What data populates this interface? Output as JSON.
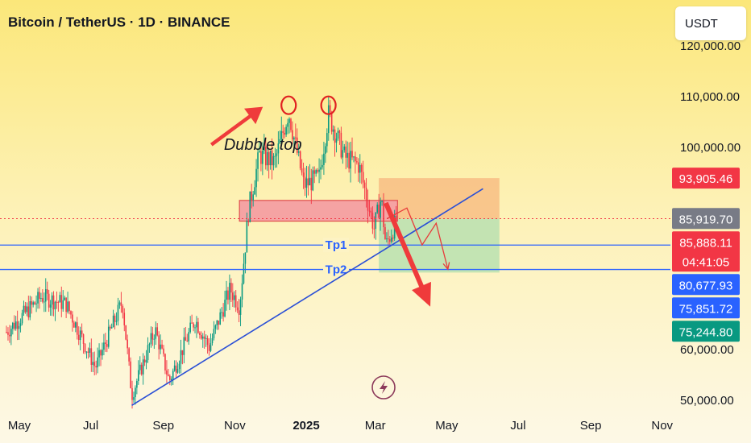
{
  "header": {
    "title": "Bitcoin / TetherUS · 1D · BINANCE"
  },
  "toolbar": {
    "currency_label": "USDT"
  },
  "chart_data": {
    "type": "candlestick",
    "title": "Bitcoin / TetherUS · 1D · BINANCE",
    "y_ticks": [
      {
        "value": 50000,
        "label": "50,000.00"
      },
      {
        "value": 60000,
        "label": "60,000.00"
      },
      {
        "value": 100000,
        "label": "100,000.00"
      },
      {
        "value": 110000,
        "label": "110,000.00"
      },
      {
        "value": 120000,
        "label": "120,000.00"
      }
    ],
    "x_ticks": [
      {
        "date": "2024-05-01",
        "label": "May",
        "bold": false
      },
      {
        "date": "2024-07-01",
        "label": "Jul",
        "bold": false
      },
      {
        "date": "2024-09-01",
        "label": "Sep",
        "bold": false
      },
      {
        "date": "2024-11-01",
        "label": "Nov",
        "bold": false
      },
      {
        "date": "2025-01-01",
        "label": "2025",
        "bold": true
      },
      {
        "date": "2025-03-01",
        "label": "Mar",
        "bold": false
      },
      {
        "date": "2025-05-01",
        "label": "May",
        "bold": false
      },
      {
        "date": "2025-07-01",
        "label": "Jul",
        "bold": false
      },
      {
        "date": "2025-09-01",
        "label": "Sep",
        "bold": false
      },
      {
        "date": "2025-11-01",
        "label": "Nov",
        "bold": false
      }
    ],
    "price_tags": [
      {
        "value": 93905.46,
        "label": "93,905.46",
        "color": "#f23645"
      },
      {
        "value": 85919.7,
        "label": "85,919.70",
        "color": "#787b86"
      },
      {
        "value": 85888.11,
        "label": "85,888.11",
        "sublabel": "04:41:05",
        "color": "#f23645"
      },
      {
        "value": 80677.93,
        "label": "80,677.93",
        "color": "#2962ff"
      },
      {
        "value": 75851.72,
        "label": "75,851.72",
        "color": "#2962ff"
      },
      {
        "value": 75244.8,
        "label": "75,244.80",
        "color": "#089981"
      }
    ],
    "horizontal_lines": [
      {
        "value": 80677.93,
        "label": "Tp1",
        "color": "#2962ff"
      },
      {
        "value": 75851.72,
        "label": "Tp2",
        "color": "#2962ff"
      }
    ],
    "current_price": {
      "value": 85888.11,
      "color": "#f23645"
    },
    "annotations": [
      {
        "text": "Dubble top",
        "date": "2024-11-25",
        "value": 99500
      }
    ],
    "trendline": {
      "from": {
        "date": "2024-08-05",
        "value": 49000
      },
      "to": {
        "date": "2025-06-01",
        "value": 91800
      }
    },
    "resistance_zone": {
      "from": "2024-11-05",
      "to": "2025-03-20",
      "low": 85400,
      "high": 89500,
      "color": "#f5a3a3"
    },
    "position_box": {
      "from": "2025-03-04",
      "to": "2025-06-15",
      "entry": 85888.11,
      "target": 75244.8,
      "stop": 93905.46
    },
    "double_top_peaks": [
      {
        "date": "2024-12-17",
        "value": 108300
      },
      {
        "date": "2025-01-20",
        "value": 108300
      }
    ],
    "candle_keypoints": [
      [
        "2024-04-20",
        63500
      ],
      [
        "2024-05-20",
        70500
      ],
      [
        "2024-06-10",
        69000
      ],
      [
        "2024-07-05",
        56500
      ],
      [
        "2024-07-28",
        69500
      ],
      [
        "2024-08-05",
        51000
      ],
      [
        "2024-08-25",
        64000
      ],
      [
        "2024-09-06",
        53800
      ],
      [
        "2024-09-28",
        66000
      ],
      [
        "2024-10-10",
        60500
      ],
      [
        "2024-10-28",
        72000
      ],
      [
        "2024-11-05",
        68500
      ],
      [
        "2024-11-13",
        88000
      ],
      [
        "2024-11-22",
        98500
      ],
      [
        "2024-12-05",
        97000
      ],
      [
        "2024-12-17",
        107000
      ],
      [
        "2024-12-30",
        92500
      ],
      [
        "2025-01-12",
        94000
      ],
      [
        "2025-01-20",
        106500
      ],
      [
        "2025-02-03",
        98000
      ],
      [
        "2025-02-15",
        96500
      ],
      [
        "2025-02-28",
        84000
      ],
      [
        "2025-03-06",
        90000
      ],
      [
        "2025-03-10",
        80500
      ],
      [
        "2025-03-20",
        86000
      ]
    ],
    "projection_path": [
      [
        "2025-03-11",
        85900
      ],
      [
        "2025-03-28",
        88000
      ],
      [
        "2025-04-10",
        80700
      ],
      [
        "2025-04-22",
        85000
      ],
      [
        "2025-05-02",
        75900
      ]
    ],
    "drop_arrow": {
      "from": {
        "date": "2025-03-10",
        "value": 89000
      },
      "to": {
        "date": "2025-04-17",
        "value": 68500
      }
    },
    "rise_arrow": {
      "from": {
        "date": "2024-10-12",
        "value": 100500
      },
      "to": {
        "date": "2024-11-25",
        "value": 108000
      }
    },
    "ylim": [
      49000,
      121600
    ],
    "colors": {
      "up": "#089981",
      "down": "#f23645",
      "line": "#2962ff",
      "accent_red": "#f23645"
    }
  }
}
